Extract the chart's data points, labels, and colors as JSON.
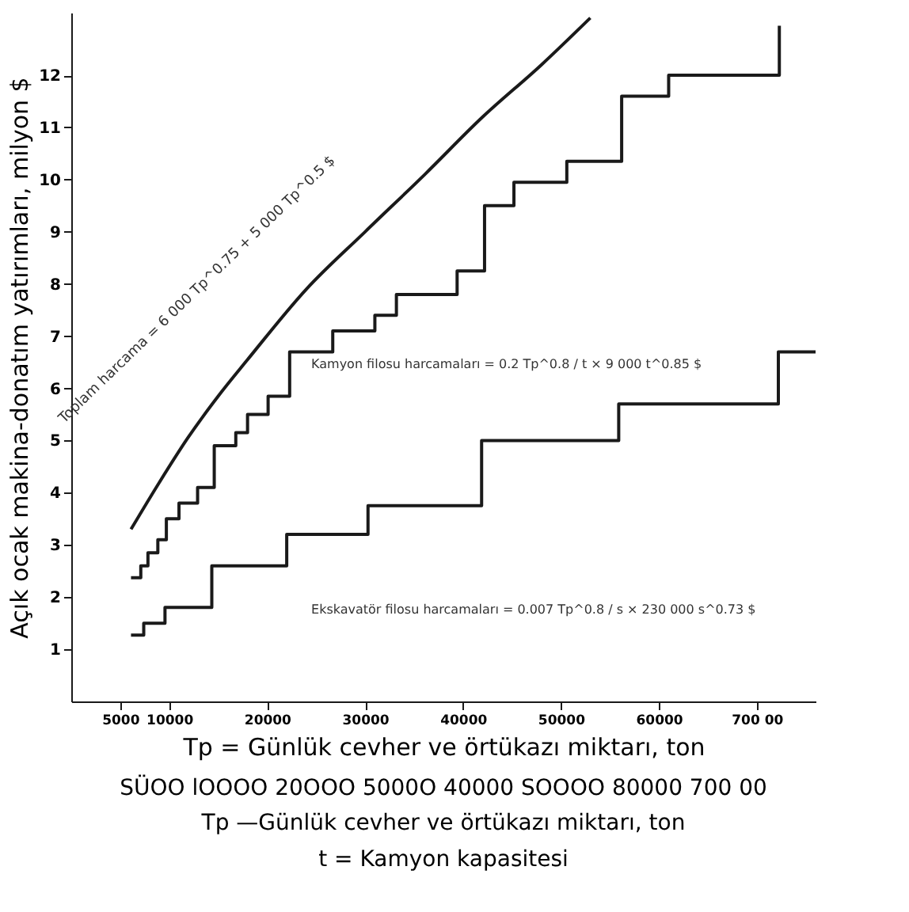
{
  "chart_data": {
    "type": "line",
    "xlabel": "Tp = Günlük cevher ve örtükazı miktarı, ton",
    "ylabel": "Açık ocak makina-donatım yatırımları, milyon $",
    "xlim": [
      0,
      76000
    ],
    "ylim": [
      0,
      13.2
    ],
    "xticks": [
      5000,
      10000,
      20000,
      30000,
      40000,
      50000,
      60000,
      {
        "value": 70000,
        "label": "700 00"
      }
    ],
    "yticks": [
      1,
      2,
      3,
      4,
      5,
      6,
      7,
      8,
      9,
      10,
      11,
      12
    ],
    "grid": false,
    "marker": "none",
    "line_style": "solid",
    "series": [
      {
        "color": "#1a1a1a",
        "x": [
          6100,
          9000,
          11900,
          15000,
          18000,
          24000,
          30000,
          36100,
          42000,
          48000,
          53000
        ],
        "values": [
          3.3,
          4.2,
          5.05,
          5.85,
          6.55,
          7.9,
          9.0,
          10.1,
          11.2,
          12.2,
          13.1
        ]
      },
      {
        "type": "step",
        "color": "#1a1a1a",
        "x": [
          6100,
          7100,
          7830,
          8840,
          9710,
          11000,
          12900,
          14600,
          16800,
          18000,
          20100,
          22300,
          26700,
          31000,
          33200,
          39400,
          42200,
          45200,
          50600,
          56200,
          61000,
          72300
        ],
        "values": [
          2.37,
          2.6,
          2.85,
          3.1,
          3.5,
          3.8,
          4.1,
          4.9,
          5.15,
          5.5,
          5.85,
          6.7,
          7.1,
          7.4,
          7.8,
          8.25,
          9.5,
          9.95,
          10.35,
          11.6,
          12.0,
          12.95
        ]
      },
      {
        "type": "step",
        "color": "#1a1a1a",
        "x": [
          6100,
          7400,
          9570,
          14350,
          22000,
          30300,
          41900,
          55900,
          72200,
          76000
        ],
        "values": [
          1.27,
          1.5,
          1.8,
          2.6,
          3.2,
          3.75,
          5.0,
          5.7,
          6.7,
          6.7
        ]
      }
    ],
    "annotations": [
      "Toplam harcama = 6 000 Tp^0.75 + 5 000 Tp^0.5 $",
      "Kamyon filosu harcamaları = 0.2 Tp^0.8 / t × 9 000 t^0.85 $",
      "Ekskavatör filosu harcamaları = 0.007 Tp^0.8 / s × 230 000 s^0.73 $",
      "SÜOO lOOOO 20OOO 5000O 40000 SOOOO 80000 700 00",
      "Tp —Günlük cevher ve örtükazı miktarı, ton",
      "t = Kamyon kapasitesi"
    ]
  }
}
